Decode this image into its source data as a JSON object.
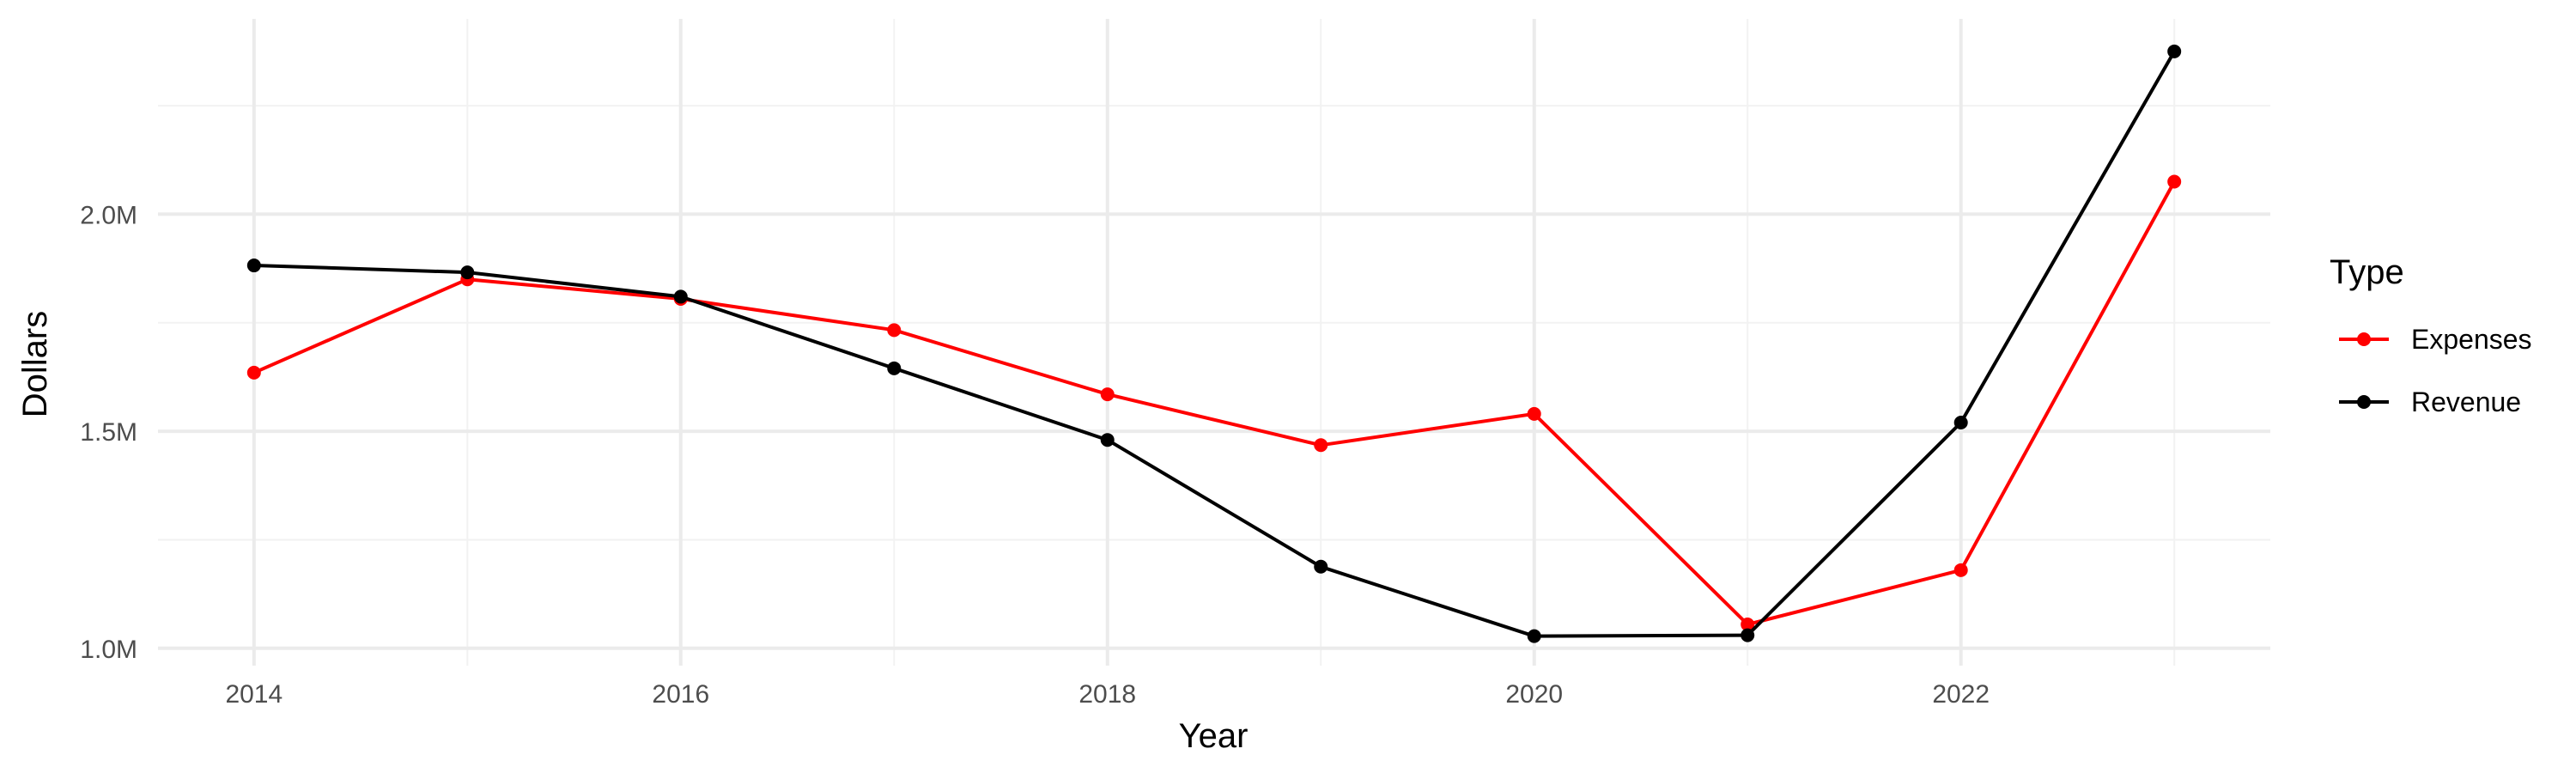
{
  "chart_data": {
    "type": "line",
    "title": "",
    "xlabel": "Year",
    "ylabel": "Dollars",
    "x": [
      2014,
      2015,
      2016,
      2017,
      2018,
      2019,
      2020,
      2021,
      2022,
      2023
    ],
    "xlim": [
      2013.55,
      2023.45
    ],
    "ylim": [
      0.96,
      2.45
    ],
    "x_ticks": [
      2014,
      2016,
      2018,
      2020,
      2022
    ],
    "x_tick_labels": [
      "2014",
      "2016",
      "2018",
      "2020",
      "2022"
    ],
    "x_minor_ticks": [
      2015,
      2017,
      2019,
      2021,
      2023
    ],
    "y_ticks": [
      1.0,
      1.5,
      2.0
    ],
    "y_tick_labels": [
      "1.0M",
      "1.5M",
      "2.0M"
    ],
    "y_minor_ticks": [
      1.25,
      1.75,
      2.25
    ],
    "grid": true,
    "legend": {
      "title": "Type",
      "placement": "right"
    },
    "series": [
      {
        "name": "Expenses",
        "color": "#ff0000",
        "values": [
          1.635,
          1.85,
          1.805,
          1.733,
          1.585,
          1.468,
          1.54,
          1.055,
          1.18,
          2.075
        ]
      },
      {
        "name": "Revenue",
        "color": "#000000",
        "values": [
          1.882,
          1.866,
          1.81,
          1.645,
          1.48,
          1.188,
          1.028,
          1.03,
          1.52,
          2.375
        ]
      }
    ]
  }
}
